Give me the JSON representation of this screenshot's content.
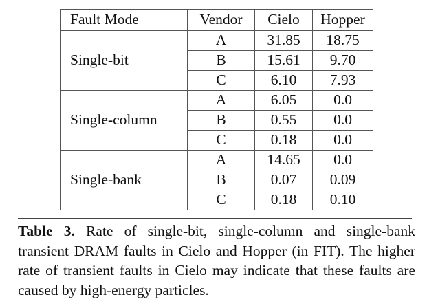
{
  "table": {
    "headers": [
      "Fault Mode",
      "Vendor",
      "Cielo",
      "Hopper"
    ],
    "groups": [
      {
        "mode": "Single-bit",
        "rows": [
          {
            "vendor": "A",
            "cielo": "31.85",
            "hopper": "18.75"
          },
          {
            "vendor": "B",
            "cielo": "15.61",
            "hopper": "9.70"
          },
          {
            "vendor": "C",
            "cielo": "6.10",
            "hopper": "7.93"
          }
        ]
      },
      {
        "mode": "Single-column",
        "rows": [
          {
            "vendor": "A",
            "cielo": "6.05",
            "hopper": "0.0"
          },
          {
            "vendor": "B",
            "cielo": "0.55",
            "hopper": "0.0"
          },
          {
            "vendor": "C",
            "cielo": "0.18",
            "hopper": "0.0"
          }
        ]
      },
      {
        "mode": "Single-bank",
        "rows": [
          {
            "vendor": "A",
            "cielo": "14.65",
            "hopper": "0.0"
          },
          {
            "vendor": "B",
            "cielo": "0.07",
            "hopper": "0.09"
          },
          {
            "vendor": "C",
            "cielo": "0.18",
            "hopper": "0.10"
          }
        ]
      }
    ]
  },
  "caption": {
    "label": "Table 3.",
    "text": "Rate of single-bit, single-column and single-bank transient DRAM faults in Cielo and Hopper (in FIT). The higher rate of transient faults in Cielo may indicate that these faults are caused by high-energy particles."
  }
}
